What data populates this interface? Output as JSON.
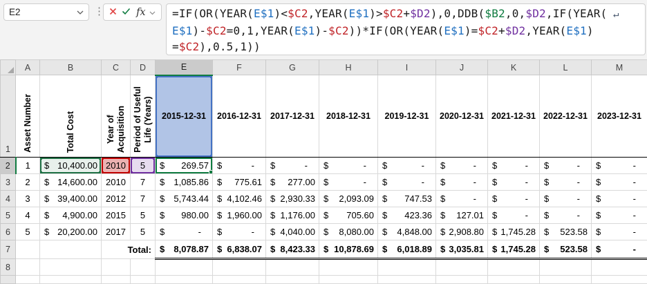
{
  "name_box": {
    "value": "E2"
  },
  "formula_buttons": {
    "fx_label": "fx"
  },
  "icons": {
    "name_box": "chevron-down-icon",
    "cancel": "x-icon",
    "enter": "check-icon",
    "insert_function": "fx-icon",
    "fx_dropdown": "chevron-down-icon",
    "select_all": "select-all-triangle-icon",
    "wrap": "line-wrap-arrow-icon"
  },
  "formula": {
    "full": "=IF(OR(YEAR(E$1)<$C2,YEAR(E$1)>$C2+$D2),0,DDB($B2,0,$D2,IF(YEAR(E$1)-$C2=0,1,YEAR(E$1)-$C2))*IF(OR(YEAR(E$1)=$C2+$D2,YEAR(E$1)=$C2),0.5,1))",
    "lines": [
      [
        {
          "t": "=IF(OR(YEAR(",
          "c": "k"
        },
        {
          "t": "E$1",
          "c": "b"
        },
        {
          "t": ")<",
          "c": "k"
        },
        {
          "t": "$C2",
          "c": "r"
        },
        {
          "t": ",YEAR(",
          "c": "k"
        },
        {
          "t": "E$1",
          "c": "b"
        },
        {
          "t": ")>",
          "c": "k"
        },
        {
          "t": "$C2",
          "c": "r"
        },
        {
          "t": "+",
          "c": "k"
        },
        {
          "t": "$D2",
          "c": "p"
        },
        {
          "t": "),0,DDB(",
          "c": "k"
        },
        {
          "t": "$B2",
          "c": "g"
        },
        {
          "t": ",0,",
          "c": "k"
        },
        {
          "t": "$D2",
          "c": "p"
        },
        {
          "t": ",IF(YEAR(",
          "c": "k"
        },
        {
          "t": " ↵",
          "c": "w"
        }
      ],
      [
        {
          "t": "E$1",
          "c": "b"
        },
        {
          "t": ")-",
          "c": "k"
        },
        {
          "t": "$C2",
          "c": "r"
        },
        {
          "t": "=0,1,YEAR(",
          "c": "k"
        },
        {
          "t": "E$1",
          "c": "b"
        },
        {
          "t": ")-",
          "c": "k"
        },
        {
          "t": "$C2",
          "c": "r"
        },
        {
          "t": "))*IF(OR(YEAR(",
          "c": "k"
        },
        {
          "t": "E$1",
          "c": "b"
        },
        {
          "t": ")=",
          "c": "k"
        },
        {
          "t": "$C2",
          "c": "r"
        },
        {
          "t": "+",
          "c": "k"
        },
        {
          "t": "$D2",
          "c": "p"
        },
        {
          "t": ",YEAR(",
          "c": "k"
        },
        {
          "t": "E$1",
          "c": "b"
        },
        {
          "t": ")",
          "c": "k"
        }
      ],
      [
        {
          "t": "=",
          "c": "k"
        },
        {
          "t": "$C2",
          "c": "r"
        },
        {
          "t": "),0.5,1))",
          "c": "k"
        }
      ]
    ]
  },
  "selection": {
    "active_cell": "E2",
    "selected_column": "E",
    "selected_row": "2",
    "highlighted_refs": [
      {
        "cell": "E1",
        "color": "#4472C4"
      },
      {
        "cell": "B2",
        "color": "#1E7145"
      },
      {
        "cell": "C2",
        "color": "#C00000"
      },
      {
        "cell": "D2",
        "color": "#7030A0"
      }
    ]
  },
  "grid": {
    "currency": "$",
    "column_headers": [
      "A",
      "B",
      "C",
      "D",
      "E",
      "F",
      "G",
      "H",
      "I",
      "J",
      "K",
      "L",
      "M"
    ],
    "row_headers": [
      "1",
      "2",
      "3",
      "4",
      "5",
      "6",
      "7",
      "8"
    ],
    "header_row": {
      "asset_number": "Asset Number",
      "total_cost": "Total Cost",
      "year_of_acquisition": "Year of\nAcquisition",
      "period_of_useful_life": "Period of Useful\nLife (Years)",
      "dates": [
        "2015-12-31",
        "2016-12-31",
        "2017-12-31",
        "2018-12-31",
        "2019-12-31",
        "2020-12-31",
        "2021-12-31",
        "2022-12-31",
        "2023-12-31"
      ]
    },
    "assets": [
      {
        "num": "1",
        "cost": "10,400.00",
        "year": "2010",
        "life": "5",
        "dep": [
          "269.57",
          "-",
          "-",
          "-",
          "-",
          "-",
          "-",
          "-",
          "-"
        ]
      },
      {
        "num": "2",
        "cost": "14,600.00",
        "year": "2010",
        "life": "7",
        "dep": [
          "1,085.86",
          "775.61",
          "277.00",
          "-",
          "-",
          "-",
          "-",
          "-",
          "-"
        ]
      },
      {
        "num": "3",
        "cost": "39,400.00",
        "year": "2012",
        "life": "7",
        "dep": [
          "5,743.44",
          "4,102.46",
          "2,930.33",
          "2,093.09",
          "747.53",
          "-",
          "-",
          "-",
          "-"
        ]
      },
      {
        "num": "4",
        "cost": "4,900.00",
        "year": "2015",
        "life": "5",
        "dep": [
          "980.00",
          "1,960.00",
          "1,176.00",
          "705.60",
          "423.36",
          "127.01",
          "-",
          "-",
          "-"
        ]
      },
      {
        "num": "5",
        "cost": "20,200.00",
        "year": "2017",
        "life": "5",
        "dep": [
          "-",
          "-",
          "4,040.00",
          "8,080.00",
          "4,848.00",
          "2,908.80",
          "1,745.28",
          "523.58",
          "-"
        ]
      }
    ],
    "total_label": "Total:",
    "totals": [
      "8,078.87",
      "6,838.07",
      "8,423.33",
      "10,878.69",
      "6,018.89",
      "3,035.81",
      "1,745.28",
      "523.58",
      "-"
    ]
  },
  "colors": {
    "ref_blue": "#4472C4",
    "ref_red": "#C00000",
    "ref_purple": "#7030A0",
    "ref_green": "#1E7145",
    "selection_green": "#107C41",
    "gridline": "#D9D9D9",
    "header_bg": "#E7E7E7",
    "header_selected_bg": "#CBCBCB"
  }
}
